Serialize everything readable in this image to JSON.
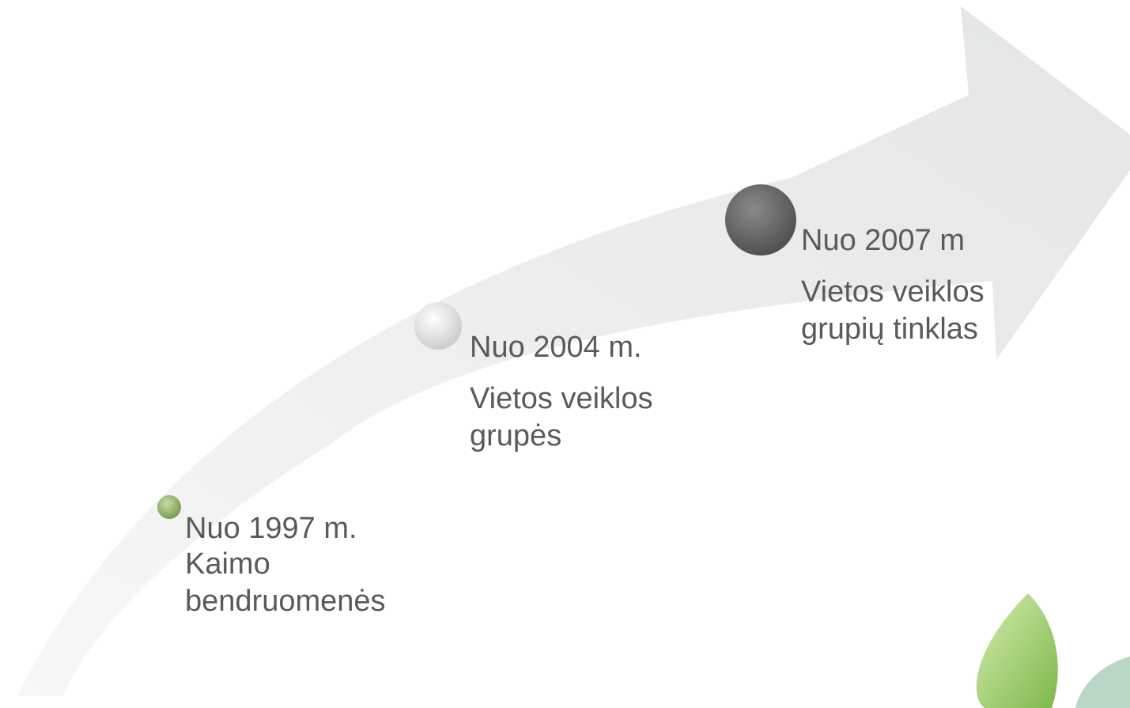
{
  "milestones": [
    {
      "year": "Nuo 1997 m.",
      "lines": [
        "Kaimo",
        "bendruomenės"
      ]
    },
    {
      "year": "Nuo 2004 m.",
      "lines": [
        "Vietos veiklos",
        "grupės"
      ]
    },
    {
      "year": "Nuo 2007 m",
      "lines": [
        "Vietos veiklos",
        "grupių tinklas"
      ]
    }
  ]
}
